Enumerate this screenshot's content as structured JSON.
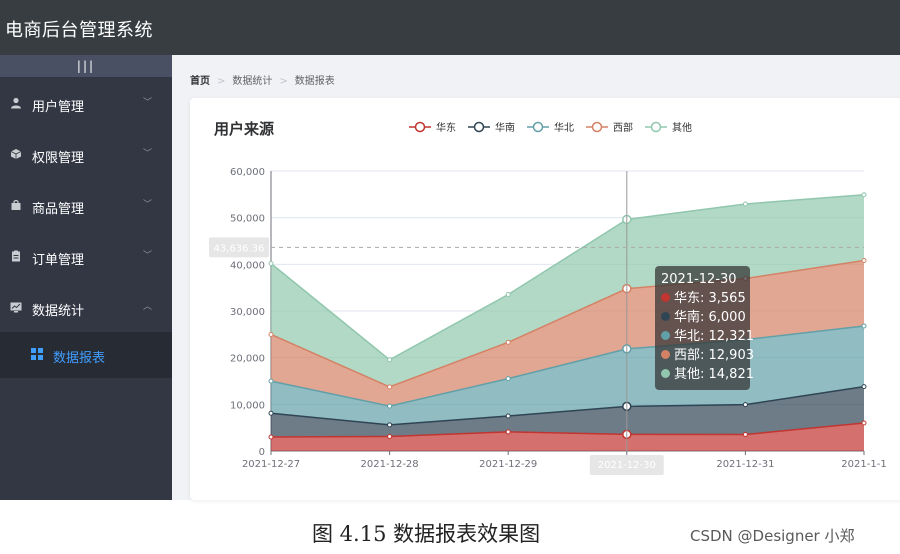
{
  "app": {
    "title": "电商后台管理系统"
  },
  "sidebar": {
    "toggle_label": "|||",
    "items": [
      {
        "label": "用户管理",
        "icon": "user-icon",
        "expanded": false
      },
      {
        "label": "权限管理",
        "icon": "cube-icon",
        "expanded": false
      },
      {
        "label": "商品管理",
        "icon": "shopping-bag-icon",
        "expanded": false
      },
      {
        "label": "订单管理",
        "icon": "clipboard-icon",
        "expanded": false
      },
      {
        "label": "数据统计",
        "icon": "chart-icon",
        "expanded": true
      }
    ],
    "submenu": {
      "label": "数据报表",
      "icon": "grid-icon",
      "active": true
    }
  },
  "breadcrumb": [
    "首页",
    "数据统计",
    "数据报表"
  ],
  "colors": {
    "active": "#409eff",
    "sidebar": "#333744",
    "topbar": "#373d41"
  },
  "chart_data": {
    "type": "area",
    "stacked": true,
    "title": "用户来源",
    "legend_position": "top",
    "categories": [
      "2021-12-27",
      "2021-12-28",
      "2021-12-29",
      "2021-12-30",
      "2021-12-31",
      "2021-1-1"
    ],
    "ylim": [
      0,
      60000
    ],
    "yticks": [
      "0",
      "10,000",
      "20,000",
      "30,000",
      "40,000",
      "50,000",
      "60,000"
    ],
    "series": [
      {
        "name": "华东",
        "color": "#c23531",
        "values": [
          2999,
          3111,
          4100,
          3565,
          3528,
          6000
        ]
      },
      {
        "name": "华南",
        "color": "#2f4554",
        "values": [
          5090,
          2500,
          3400,
          6000,
          6400,
          7800
        ]
      },
      {
        "name": "华北",
        "color": "#61a0a8",
        "values": [
          6888,
          4000,
          8010,
          12321,
          13928,
          12984
        ]
      },
      {
        "name": "西部",
        "color": "#d48265",
        "values": [
          9991,
          4130,
          7777,
          12903,
          13098,
          14028
        ]
      },
      {
        "name": "其他",
        "color": "#91c7ae",
        "values": [
          15212,
          5800,
          10241,
          14821,
          15982,
          14091
        ]
      }
    ],
    "hover": {
      "category": "2021-12-30",
      "axis_pointer_value": "43,636.36",
      "rows": [
        "华东: 3,565",
        "华南: 6,000",
        "华北: 12,321",
        "西部: 12,903",
        "其他: 14,821"
      ]
    },
    "grid": true
  },
  "caption": "图 4.15 数据报表效果图",
  "watermark": "CSDN @Designer 小郑"
}
